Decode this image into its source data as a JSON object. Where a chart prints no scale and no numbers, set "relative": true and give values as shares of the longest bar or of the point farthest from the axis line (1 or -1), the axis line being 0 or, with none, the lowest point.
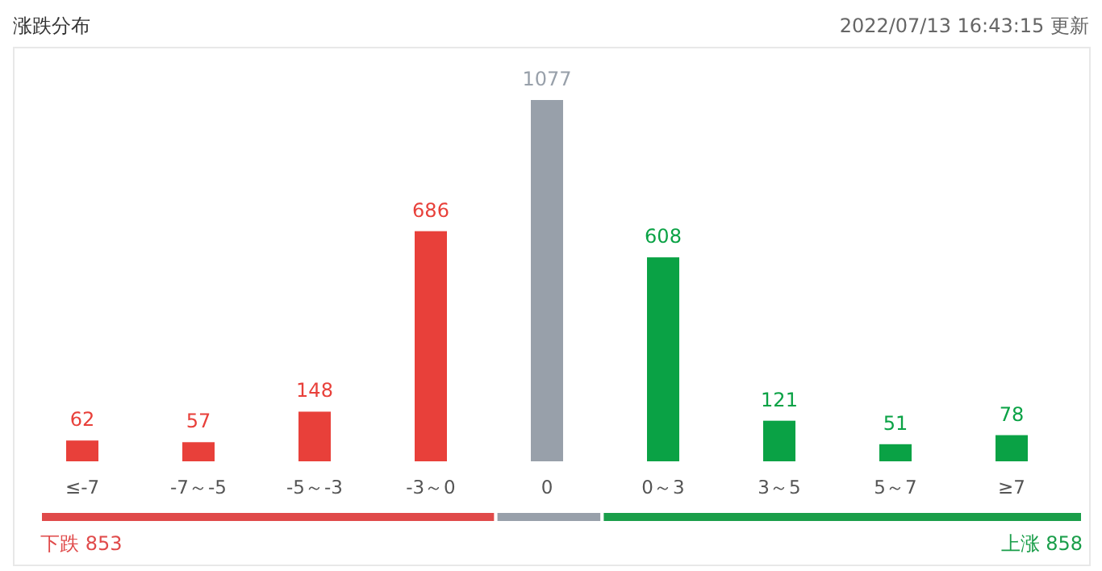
{
  "chart_data": [
    {
      "type": "bar",
      "title": "涨跌分布",
      "subtitle": "2022/07/13 16:43:15 更新",
      "categories": [
        "≤-7",
        "-7～-5",
        "-5～-3",
        "-3～0",
        "0",
        "0～3",
        "3～5",
        "5～7",
        "≥7"
      ],
      "values": [
        62,
        57,
        148,
        686,
        1077,
        608,
        121,
        51,
        78
      ],
      "colors": [
        "#e8403a",
        "#e8403a",
        "#e8403a",
        "#e8403a",
        "#98a0aa",
        "#0aa245",
        "#0aa245",
        "#0aa245",
        "#0aa245"
      ],
      "data_labels": true
    },
    {
      "type": "bar",
      "orientation": "horizontal",
      "stacked": true,
      "relative": true,
      "categories": [
        null
      ],
      "series": [
        {
          "color": "#e04a4a",
          "values": [
            0.437
          ]
        },
        {
          "color": "#98a0aa",
          "values": [
            0.102
          ]
        },
        {
          "color": "#1a9e4a",
          "values": [
            0.461
          ]
        }
      ],
      "annotations": [
        "下跌 853",
        "上涨 858"
      ]
    }
  ]
}
